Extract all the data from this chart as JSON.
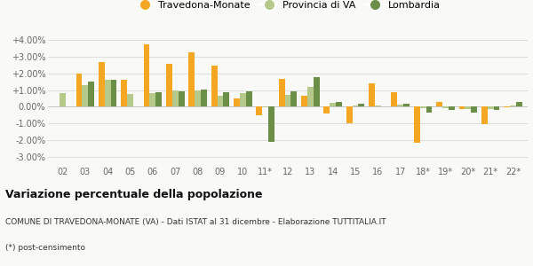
{
  "categories": [
    "02",
    "03",
    "04",
    "05",
    "06",
    "07",
    "08",
    "09",
    "10",
    "11*",
    "12",
    "13",
    "14",
    "15",
    "16",
    "17",
    "18*",
    "19*",
    "20*",
    "21*",
    "22*"
  ],
  "travedona": [
    0.02,
    2.0,
    2.7,
    1.6,
    3.75,
    2.6,
    3.3,
    2.5,
    0.5,
    -0.5,
    1.65,
    0.65,
    -0.4,
    -1.0,
    1.4,
    0.85,
    -2.15,
    0.3,
    -0.15,
    -1.05,
    -0.05
  ],
  "provincia": [
    0.8,
    1.3,
    1.6,
    0.75,
    0.8,
    1.0,
    1.0,
    0.65,
    0.8,
    -0.05,
    0.7,
    1.2,
    0.25,
    0.05,
    0.05,
    0.15,
    -0.1,
    -0.1,
    -0.15,
    -0.15,
    0.1
  ],
  "lombardia": [
    0.0,
    1.5,
    1.6,
    0.0,
    0.85,
    0.95,
    1.05,
    0.9,
    0.95,
    -2.1,
    0.95,
    1.8,
    0.3,
    0.2,
    0.0,
    0.2,
    -0.35,
    -0.2,
    -0.35,
    -0.2,
    0.3
  ],
  "travedona_color": "#f5a623",
  "provincia_color": "#b5c98a",
  "lombardia_color": "#6b8f47",
  "bg_color": "#f9f9f7",
  "grid_color": "#dddddd",
  "ylim": [
    -3.5,
    4.5
  ],
  "yticks": [
    -3.0,
    -2.0,
    -1.0,
    0.0,
    1.0,
    2.0,
    3.0,
    4.0
  ],
  "ytick_labels": [
    "-3.00%",
    "-2.00%",
    "-1.00%",
    "0.00%",
    "+1.00%",
    "+2.00%",
    "+3.00%",
    "+4.00%"
  ],
  "title": "Variazione percentuale della popolazione",
  "subtitle": "COMUNE DI TRAVEDONA-MONATE (VA) - Dati ISTAT al 31 dicembre - Elaborazione TUTTITALIA.IT",
  "footnote": "(*) post-censimento",
  "legend_labels": [
    "Travedona-Monate",
    "Provincia di VA",
    "Lombardia"
  ]
}
